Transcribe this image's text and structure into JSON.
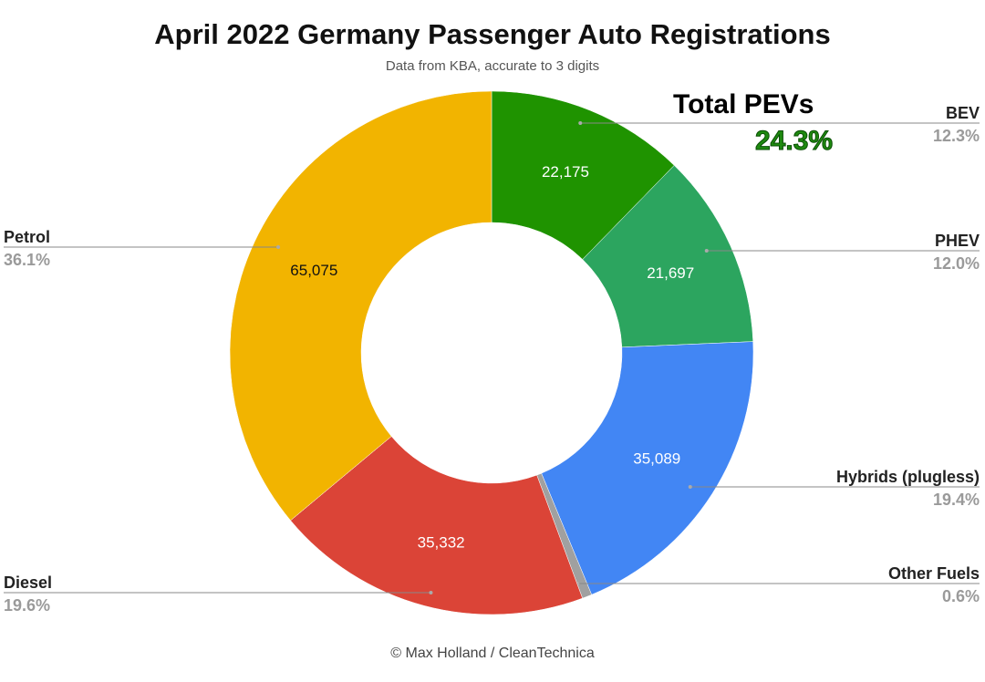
{
  "chart_data": {
    "type": "pie",
    "title": "April 2022 Germany Passenger Auto Registrations",
    "subtitle": "Data from KBA, accurate to 3 digits",
    "donut": true,
    "slices": [
      {
        "name": "BEV",
        "value": 22175,
        "value_label": "22,175",
        "percent_label": "12.3%",
        "color": "#1f9300"
      },
      {
        "name": "PHEV",
        "value": 21697,
        "value_label": "21,697",
        "percent_label": "12.0%",
        "color": "#2ca55f"
      },
      {
        "name": "Hybrids (plugless)",
        "value": 35089,
        "value_label": "35,089",
        "percent_label": "19.4%",
        "color": "#4286f4"
      },
      {
        "name": "Other Fuels",
        "value": 1080,
        "value_label": "",
        "percent_label": "0.6%",
        "color": "#a0a0a0"
      },
      {
        "name": "Diesel",
        "value": 35332,
        "value_label": "35,332",
        "percent_label": "19.6%",
        "color": "#db4437"
      },
      {
        "name": "Petrol",
        "value": 65075,
        "value_label": "65,075",
        "percent_label": "36.1%",
        "color": "#f2b400"
      }
    ],
    "annotation": {
      "label": "Total PEVs",
      "value": "24.3%"
    },
    "credit": "© Max Holland / CleanTechnica"
  }
}
